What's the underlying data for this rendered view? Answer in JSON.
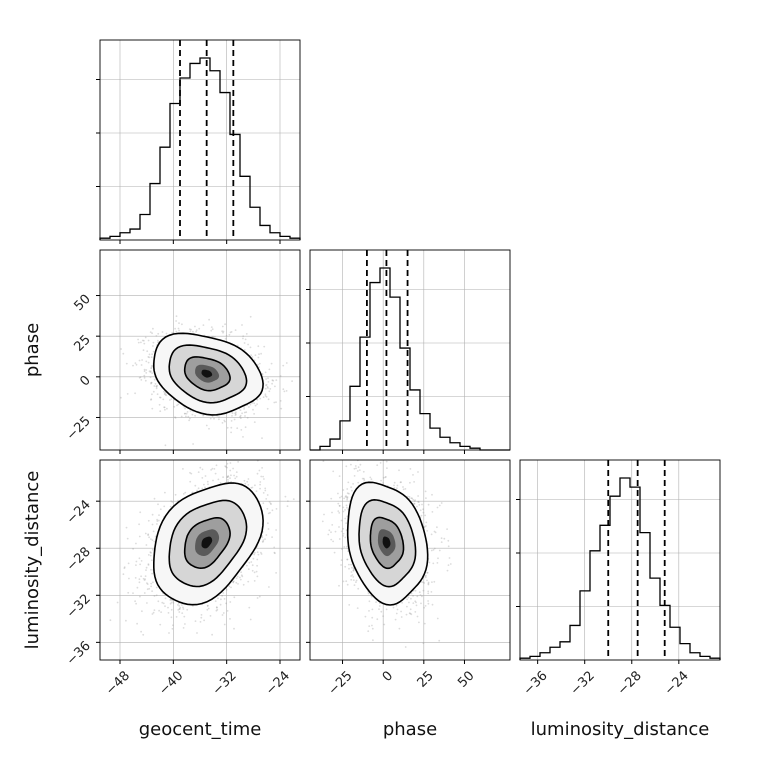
{
  "chart_data": {
    "type": "corner",
    "parameters": [
      {
        "name": "geocent_time",
        "label": "geocent_time",
        "range": [
          -51,
          -21
        ],
        "ticks": [
          -48,
          -40,
          -32,
          -24
        ],
        "mean": -35,
        "std": 4,
        "quantiles": [
          -39.0,
          -35.0,
          -31.0
        ]
      },
      {
        "name": "phase",
        "label": "phase",
        "range": [
          -45,
          78
        ],
        "ticks": [
          -25,
          0,
          25,
          50
        ],
        "mean": 2,
        "std": 12,
        "quantiles": [
          -10.0,
          2.0,
          15.0
        ]
      },
      {
        "name": "luminosity_distance",
        "label": "luminosity_distance",
        "range": [
          -37.5,
          -20.5
        ],
        "ticks": [
          -36,
          -32,
          -28,
          -24
        ],
        "mean": -27.5,
        "std": 2.5,
        "quantiles": [
          -30.0,
          -27.5,
          -25.2
        ]
      }
    ],
    "tick_labels": {
      "geocent_time": [
        "−48",
        "−40",
        "−32",
        "−24"
      ],
      "phase": [
        "−25",
        "0",
        "25",
        "50"
      ],
      "luminosity_distance": [
        "−36",
        "−32",
        "−28",
        "−24"
      ]
    },
    "correlations": [
      {
        "x": "geocent_time",
        "y": "phase",
        "rho": -0.25
      },
      {
        "x": "geocent_time",
        "y": "luminosity_distance",
        "rho": 0.35
      },
      {
        "x": "phase",
        "y": "luminosity_distance",
        "rho": -0.2
      }
    ],
    "histograms": {
      "geocent_time": [
        0.01,
        0.02,
        0.04,
        0.06,
        0.14,
        0.31,
        0.51,
        0.75,
        0.89,
        0.97,
        1.0,
        0.93,
        0.81,
        0.58,
        0.35,
        0.18,
        0.08,
        0.04,
        0.02,
        0.01
      ],
      "phase": [
        0.0,
        0.02,
        0.06,
        0.16,
        0.35,
        0.62,
        0.92,
        1.0,
        0.84,
        0.56,
        0.33,
        0.2,
        0.12,
        0.07,
        0.04,
        0.02,
        0.01,
        0.0,
        0.0,
        0.0
      ],
      "luminosity_distance": [
        0.01,
        0.02,
        0.04,
        0.07,
        0.1,
        0.19,
        0.38,
        0.6,
        0.74,
        0.9,
        1.0,
        0.95,
        0.7,
        0.45,
        0.3,
        0.18,
        0.09,
        0.04,
        0.02,
        0.01
      ]
    },
    "grid": true,
    "quantile_lines": "dashed",
    "colors": {
      "line": "#000000",
      "grid": "#b0b0b0",
      "scatter": "#9a9a9a"
    }
  }
}
